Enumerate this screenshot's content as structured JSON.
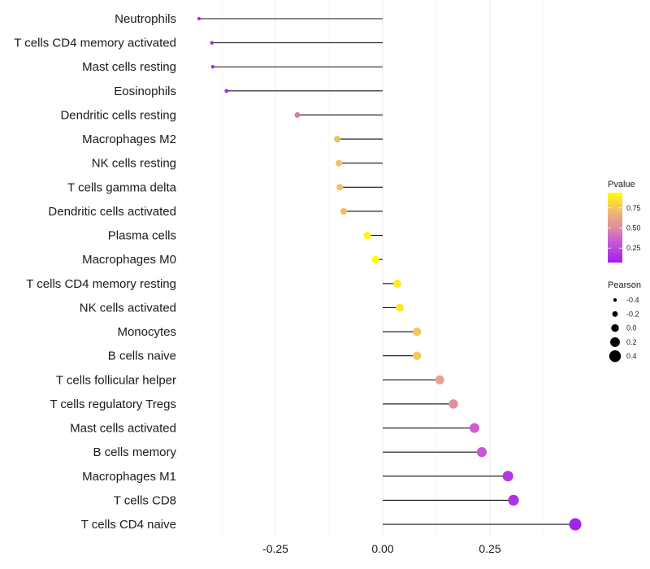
{
  "chart_data": {
    "type": "lollipop",
    "title": "",
    "xlabel": "",
    "ylabel": "",
    "xlim": [
      -0.44,
      0.47
    ],
    "x_ticks": [
      -0.25,
      0.0,
      0.25
    ],
    "x_tick_labels": [
      "-0.25",
      "0.00",
      "0.25"
    ],
    "grid": true,
    "categories": [
      "Neutrophils",
      "T cells CD4 memory activated",
      "Mast cells resting",
      "Eosinophils",
      "Dendritic cells resting",
      "Macrophages M2",
      "NK cells resting",
      "T cells gamma delta",
      "Dendritic cells activated",
      "Plasma cells",
      "Macrophages M0",
      "T cells CD4 memory resting",
      "NK cells activated",
      "Monocytes",
      "B cells naive",
      "T cells follicular helper",
      "T cells regulatory  Tregs",
      "Mast cells activated",
      "B cells memory",
      "Macrophages M1",
      "T cells CD8",
      "T cells CD4 naive"
    ],
    "pearson": [
      -0.428,
      -0.398,
      -0.396,
      -0.364,
      -0.199,
      -0.106,
      -0.102,
      -0.1,
      -0.091,
      -0.036,
      -0.017,
      0.034,
      0.04,
      0.08,
      0.08,
      0.133,
      0.165,
      0.214,
      0.231,
      0.292,
      0.305,
      0.449
    ],
    "pvalue": [
      0.08,
      0.1,
      0.1,
      0.12,
      0.45,
      0.72,
      0.73,
      0.73,
      0.72,
      0.92,
      0.94,
      0.88,
      0.85,
      0.75,
      0.76,
      0.6,
      0.52,
      0.35,
      0.32,
      0.18,
      0.15,
      0.08
    ],
    "legend_color": {
      "title": "Pvalue",
      "ticks": [
        0.25,
        0.5,
        0.75
      ],
      "tick_labels": [
        "0.25",
        "0.50",
        "0.75"
      ],
      "range": [
        0.07,
        0.94
      ],
      "low_color": "#A020F0",
      "high_color": "#FFFF00"
    },
    "legend_size": {
      "title": "Pearson",
      "values": [
        -0.4,
        -0.2,
        0.0,
        0.2,
        0.4
      ],
      "labels": [
        "-0.4",
        "-0.2",
        "0.0",
        "0.2",
        "0.4"
      ]
    },
    "legend_placement": "right"
  }
}
